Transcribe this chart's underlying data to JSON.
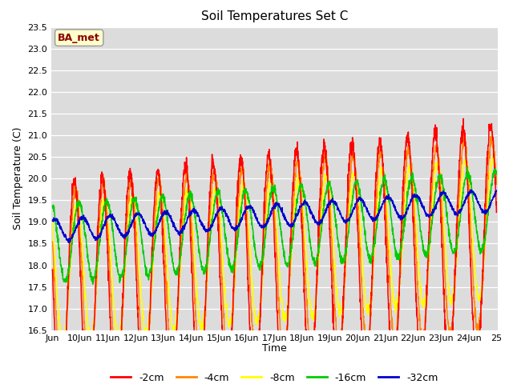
{
  "title": "Soil Temperatures Set C",
  "xlabel": "Time",
  "ylabel": "Soil Temperature (C)",
  "ylim": [
    16.5,
    23.5
  ],
  "plot_bg_color": "#dcdcdc",
  "annotation_text": "BA_met",
  "annotation_bg": "#ffffcc",
  "annotation_fg": "#8b0000",
  "legend_entries": [
    "-2cm",
    "-4cm",
    "-8cm",
    "-16cm",
    "-32cm"
  ],
  "legend_colors": [
    "#ff0000",
    "#ff8800",
    "#ffff00",
    "#00cc00",
    "#0000cc"
  ],
  "x_tick_labels": [
    "Jun",
    "10Jun",
    "11Jun",
    "12Jun",
    "13Jun",
    "14Jun",
    "15Jun",
    "16Jun",
    "17Jun",
    "18Jun",
    "19Jun",
    "20Jun",
    "21Jun",
    "22Jun",
    "23Jun",
    "24Jun",
    "25"
  ],
  "x_tick_positions": [
    0,
    24,
    48,
    72,
    96,
    120,
    144,
    168,
    192,
    216,
    240,
    264,
    288,
    312,
    336,
    360,
    384
  ],
  "trend_2cm": {
    "base": 17.2,
    "amp": 2.7,
    "phase": 13,
    "trend": 0.0035
  },
  "trend_4cm": {
    "base": 17.5,
    "amp": 2.2,
    "phase": 14,
    "trend": 0.0032
  },
  "trend_8cm": {
    "base": 17.8,
    "amp": 1.6,
    "phase": 15,
    "trend": 0.0028
  },
  "trend_16cm": {
    "base": 18.5,
    "amp": 0.9,
    "phase": 17,
    "trend": 0.002
  },
  "trend_32cm": {
    "base": 18.8,
    "amp": 0.25,
    "phase": 20,
    "trend": 0.0018
  }
}
